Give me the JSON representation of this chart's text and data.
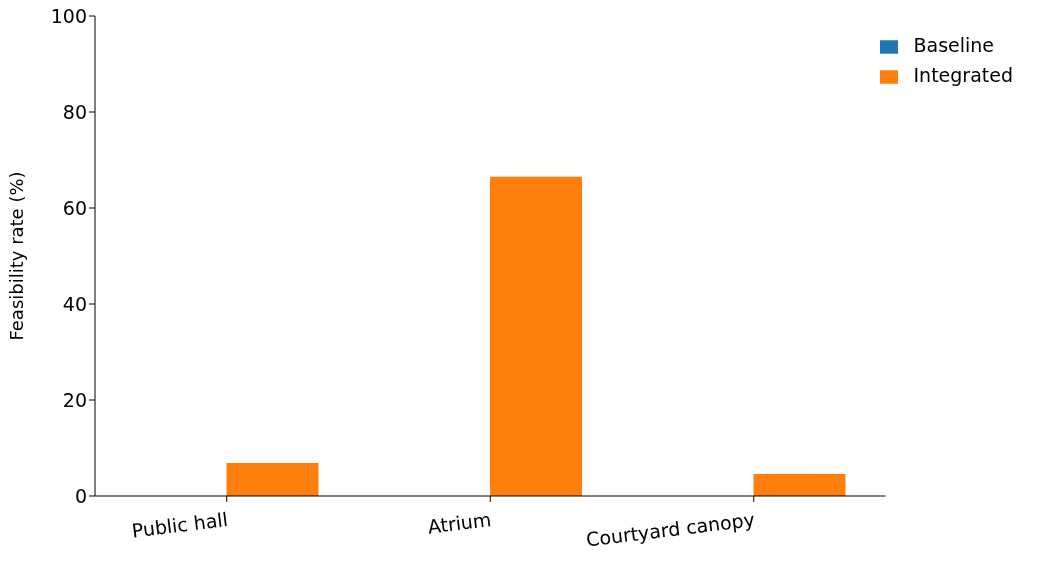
{
  "chart_data": {
    "type": "bar",
    "ylabel": "Feasibility rate (%)",
    "categories": [
      "Public hall",
      "Atrium",
      "Courtyard canopy"
    ],
    "series": [
      {
        "name": "Baseline",
        "color": "#1f77b4",
        "values": [
          0,
          0,
          0
        ]
      },
      {
        "name": "Integrated",
        "color": "#ff7f0e",
        "values": [
          6.9,
          66.5,
          4.6
        ]
      }
    ],
    "ylim": [
      0,
      100
    ],
    "yticks": [
      0,
      20,
      40,
      60,
      80,
      100
    ],
    "grid": false,
    "legend": "top right"
  }
}
